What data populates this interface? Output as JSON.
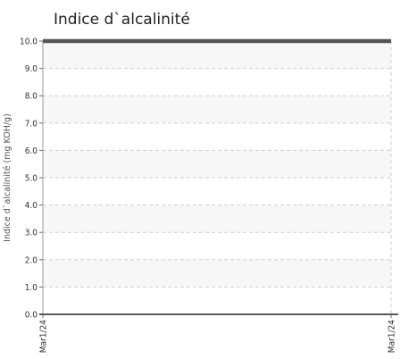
{
  "chart_data": {
    "type": "line",
    "title": "Indice d`alcalinité",
    "xlabel": "",
    "ylabel": "Indice d`alcalinité (mg KOH/g)",
    "x_categories": [
      "Mar1/24",
      "Mar1/24"
    ],
    "ylim": [
      0,
      10
    ],
    "yticks": [
      "0.0",
      "1.0",
      "2.0",
      "3.0",
      "4.0",
      "5.0",
      "6.0",
      "7.0",
      "8.0",
      "9.0",
      "10.0"
    ],
    "grid": true,
    "series": [
      {
        "values": [
          10,
          10
        ],
        "color": "#555555"
      }
    ]
  }
}
